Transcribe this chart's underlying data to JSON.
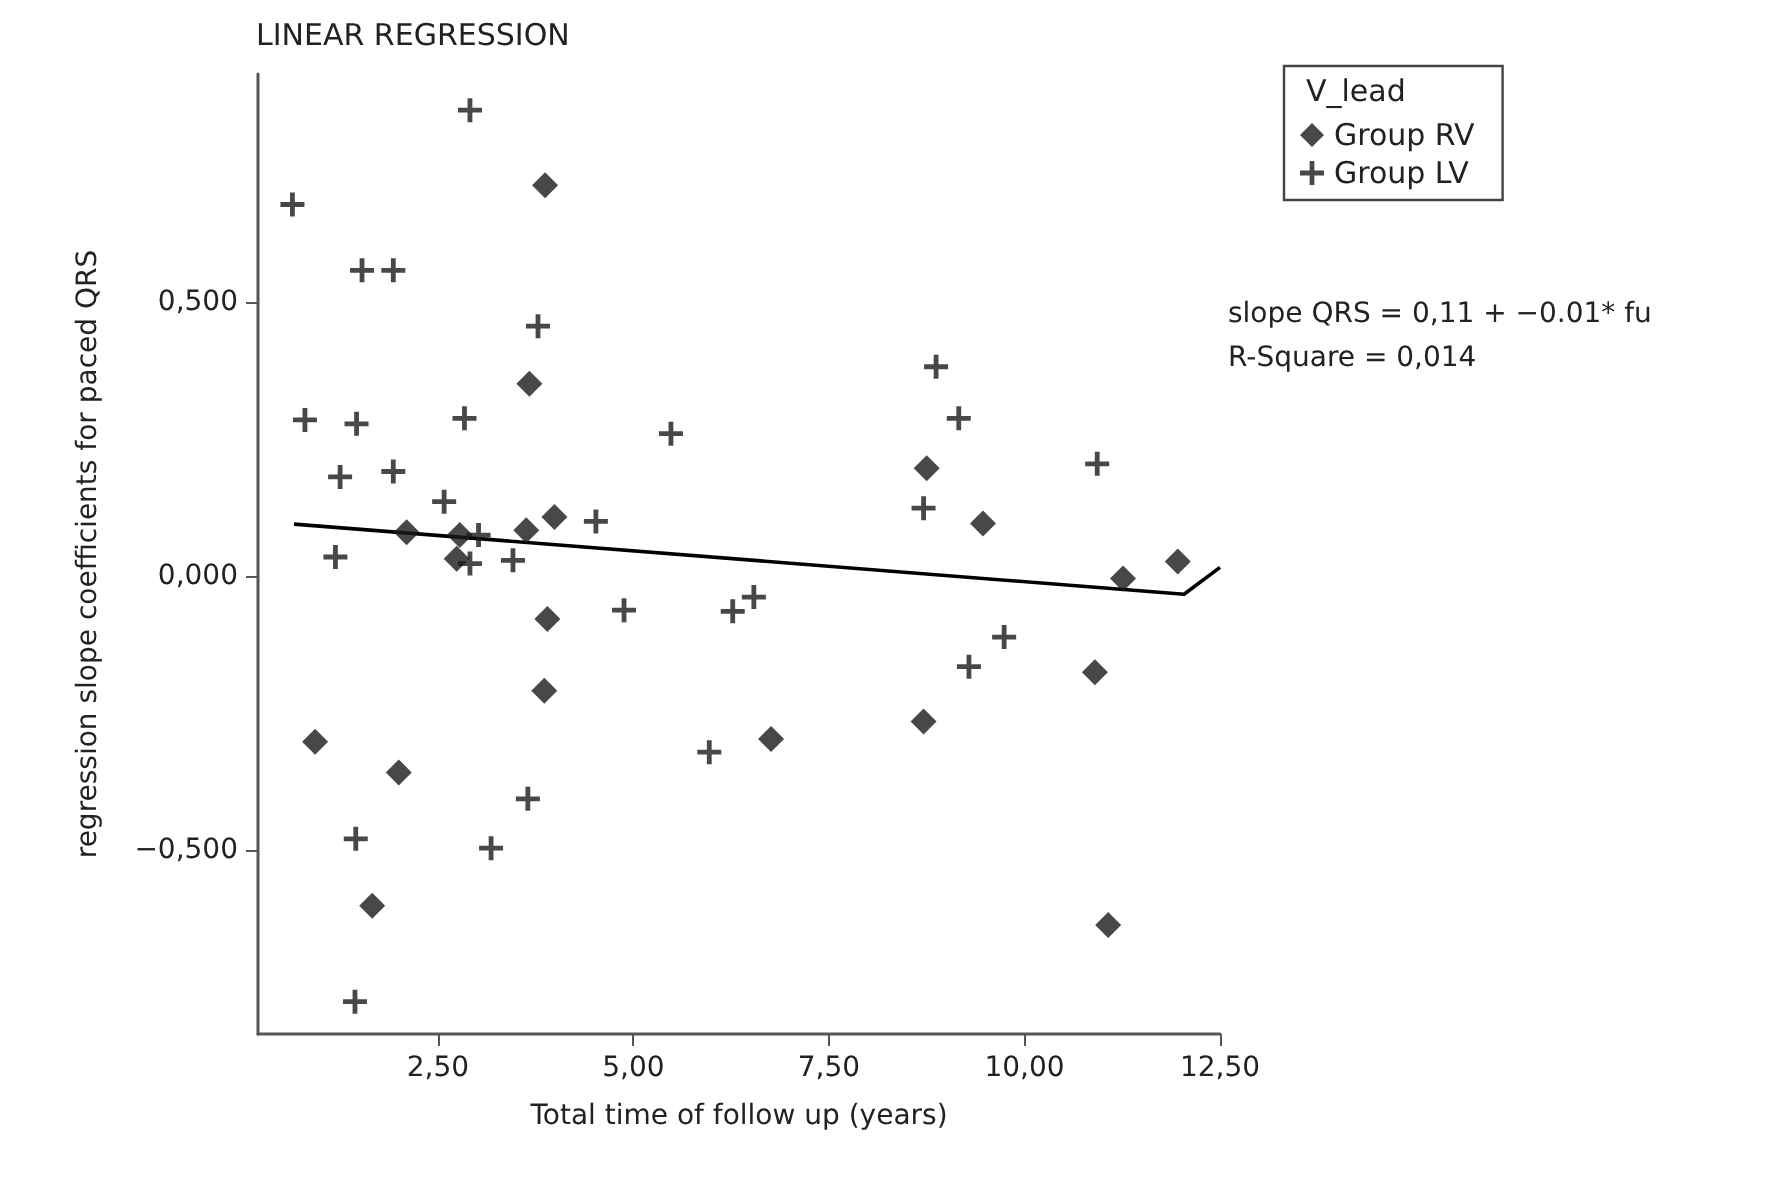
{
  "chart_data": {
    "type": "scatter",
    "title": "LINEAR REGRESSION",
    "xlabel": "Total time of follow up (years)",
    "ylabel": "regression slope coefficients for paced QRS",
    "legend_title": "V_lead",
    "legend": "top right",
    "grid": false,
    "xlim": [
      0.2,
      12.5
    ],
    "ylim": [
      -0.835,
      0.916
    ],
    "xticks": [
      {
        "value": 2.5,
        "label": "2,50"
      },
      {
        "value": 5,
        "label": "5,00"
      },
      {
        "value": 7.5,
        "label": "7,50"
      },
      {
        "value": 10,
        "label": "10,00"
      },
      {
        "value": 12.5,
        "label": "12,50"
      }
    ],
    "yticks": [
      {
        "value": -0.5,
        "label": "−0,500"
      },
      {
        "value": 0,
        "label": "0,000"
      },
      {
        "value": 0.5,
        "label": "0,500"
      }
    ],
    "annotations": [
      "slope QRS = 0,11 + −0.01* fu",
      "R-Square = 0,014"
    ],
    "series": [
      {
        "name": "Group RV",
        "marker": "diamond",
        "color": "#1a1a1a",
        "x": [
          3.87,
          3.67,
          2.1,
          2.78,
          3.63,
          3.99,
          2.74,
          3.9,
          3.86,
          0.93,
          2.0,
          1.66,
          8.75,
          9.47,
          11.26,
          11.96,
          10.9,
          8.71,
          6.76,
          11.07
        ],
        "values": [
          0.713,
          0.351,
          0.08,
          0.075,
          0.084,
          0.108,
          0.032,
          -0.078,
          -0.209,
          -0.302,
          -0.358,
          -0.601,
          0.197,
          0.096,
          -0.004,
          0.027,
          -0.175,
          -0.265,
          -0.297,
          -0.636
        ]
      },
      {
        "name": "Group LV",
        "marker": "cross",
        "color": "#1a1a1a",
        "x": [
          2.91,
          0.64,
          1.53,
          1.93,
          3.78,
          0.8,
          1.46,
          2.84,
          1.25,
          1.93,
          2.58,
          4.52,
          3.02,
          1.19,
          2.91,
          3.46,
          4.88,
          3.65,
          3.18,
          1.45,
          1.44,
          5.48,
          8.87,
          9.16,
          8.71,
          10.93,
          6.27,
          6.54,
          9.74,
          9.29,
          5.97
        ],
        "values": [
          0.85,
          0.678,
          0.558,
          0.558,
          0.456,
          0.285,
          0.278,
          0.288,
          0.181,
          0.191,
          0.136,
          0.1,
          0.075,
          0.035,
          0.023,
          0.029,
          -0.062,
          -0.406,
          -0.496,
          -0.479,
          -0.776,
          0.26,
          0.382,
          0.288,
          0.124,
          0.205,
          -0.064,
          -0.038,
          -0.111,
          -0.165,
          -0.321
        ]
      },
      {
        "type": "line",
        "marker": "none",
        "line_style": "solid",
        "color": "#000000",
        "x": [
          0.66,
          12.04,
          12.5
        ],
        "values": [
          0.095,
          -0.033,
          0.016
        ]
      }
    ]
  }
}
